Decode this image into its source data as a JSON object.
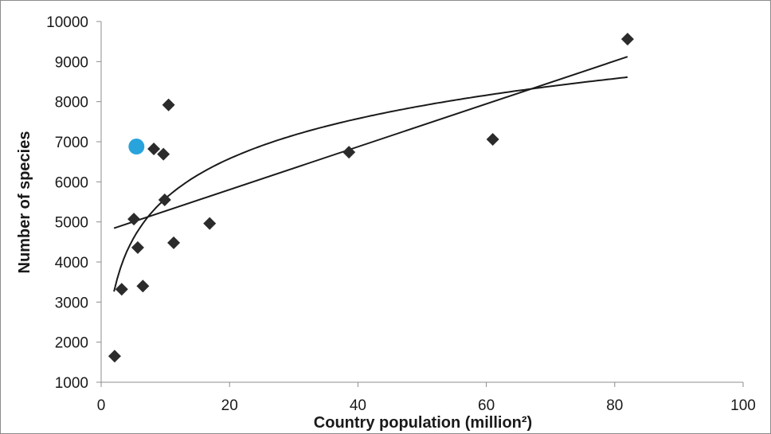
{
  "chart_data": {
    "type": "scatter",
    "title": "",
    "xlabel": "Country population (million²)",
    "ylabel": "Number of species",
    "xlim": [
      0,
      100
    ],
    "ylim": [
      1000,
      10000
    ],
    "x_ticks": [
      "0",
      "20",
      "40",
      "60",
      "80",
      "100"
    ],
    "y_ticks": [
      "1000",
      "2000",
      "3000",
      "4000",
      "5000",
      "6000",
      "7000",
      "8000",
      "9000",
      "10000"
    ],
    "grid": false,
    "legend": "none",
    "series": [
      {
        "marker": "diamond",
        "color": "#2b2b2b",
        "points": [
          {
            "x": 2.1,
            "y": 1650
          },
          {
            "x": 3.2,
            "y": 3320
          },
          {
            "x": 5.1,
            "y": 5070
          },
          {
            "x": 5.7,
            "y": 4360
          },
          {
            "x": 6.5,
            "y": 3400
          },
          {
            "x": 8.2,
            "y": 6820
          },
          {
            "x": 9.7,
            "y": 6690
          },
          {
            "x": 9.9,
            "y": 5550
          },
          {
            "x": 10.5,
            "y": 7920
          },
          {
            "x": 11.3,
            "y": 4480
          },
          {
            "x": 16.9,
            "y": 4960
          },
          {
            "x": 38.6,
            "y": 6740
          },
          {
            "x": 61.0,
            "y": 7060
          },
          {
            "x": 82.0,
            "y": 9560
          }
        ]
      },
      {
        "marker": "circle",
        "color": "#29a3dc",
        "points": [
          {
            "x": 5.5,
            "y": 6880
          }
        ]
      }
    ],
    "trendlines": [
      {
        "type": "linear",
        "intercept": 4735,
        "slope": 53.5,
        "x_range": [
          2,
          82
        ],
        "color": "#1a1a1a"
      },
      {
        "type": "logarithmic",
        "a": 2265,
        "b": 1440,
        "x_range": [
          2,
          82
        ],
        "color": "#1a1a1a"
      }
    ]
  }
}
